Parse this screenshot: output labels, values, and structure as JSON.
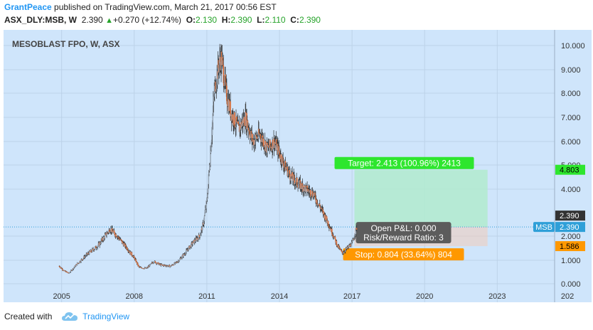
{
  "header": {
    "author": "GrantPeace",
    "published_text": "published on TradingView.com, March 21, 2017 00:56 EST",
    "symbol": "ASX_DLY:MSB, W",
    "last": "2.390",
    "change": "+0.270 (+12.74%)",
    "o_label": "O:",
    "o_value": "2.130",
    "h_label": "H:",
    "h_value": "2.390",
    "l_label": "L:",
    "l_value": "2.110",
    "c_label": "C:",
    "c_value": "2.390"
  },
  "footer": {
    "created_with": "Created with",
    "brand": "TradingView"
  },
  "colors": {
    "background": "#cfe5fb",
    "up_candle": "#9aa8b7",
    "down_candle": "#e0703a",
    "wick": "#333333",
    "target_fill": "#b3ead0",
    "target_badge": "#2ee62e",
    "stop_badge": "#ff9800",
    "price_line": "#2e9fd8",
    "msb_badge": "#2e9fd8"
  },
  "chart_data": {
    "type": "candlestick",
    "title": "MESOBLAST FPO, W, ASX",
    "scale": "log",
    "x_ticks": [
      "2005",
      "2008",
      "2011",
      "2014",
      "2017",
      "2020",
      "2023",
      "202"
    ],
    "y_ticks": [
      "10.000",
      "9.000",
      "8.000",
      "7.000",
      "6.000",
      "5.000",
      "4.000",
      "2.000",
      "1.000",
      "0.000"
    ],
    "x_range": [
      2002.6,
      2025.4
    ],
    "y_range": [
      0.0,
      10.0
    ],
    "price_path": [
      [
        2004.9,
        0.75
      ],
      [
        2005.1,
        0.55
      ],
      [
        2005.3,
        0.45
      ],
      [
        2005.6,
        0.8
      ],
      [
        2006.0,
        1.2
      ],
      [
        2006.5,
        1.6
      ],
      [
        2007.0,
        2.3
      ],
      [
        2007.3,
        2.0
      ],
      [
        2007.7,
        1.5
      ],
      [
        2008.0,
        1.1
      ],
      [
        2008.2,
        0.7
      ],
      [
        2008.5,
        0.65
      ],
      [
        2008.8,
        0.95
      ],
      [
        2009.1,
        0.8
      ],
      [
        2009.5,
        0.75
      ],
      [
        2009.8,
        0.95
      ],
      [
        2010.1,
        1.3
      ],
      [
        2010.4,
        1.7
      ],
      [
        2010.7,
        2.0
      ],
      [
        2010.85,
        2.5
      ],
      [
        2011.0,
        3.5
      ],
      [
        2011.15,
        5.5
      ],
      [
        2011.3,
        8.0
      ],
      [
        2011.45,
        9.0
      ],
      [
        2011.6,
        9.5
      ],
      [
        2011.8,
        8.0
      ],
      [
        2012.0,
        7.2
      ],
      [
        2012.3,
        6.5
      ],
      [
        2012.6,
        7.0
      ],
      [
        2012.9,
        6.0
      ],
      [
        2013.2,
        6.3
      ],
      [
        2013.5,
        5.7
      ],
      [
        2013.8,
        6.0
      ],
      [
        2014.0,
        5.5
      ],
      [
        2014.2,
        5.0
      ],
      [
        2014.5,
        4.5
      ],
      [
        2014.8,
        4.2
      ],
      [
        2015.1,
        4.0
      ],
      [
        2015.4,
        3.8
      ],
      [
        2015.7,
        3.2
      ],
      [
        2016.0,
        2.6
      ],
      [
        2016.2,
        2.1
      ],
      [
        2016.4,
        1.6
      ],
      [
        2016.6,
        1.3
      ],
      [
        2016.8,
        1.5
      ],
      [
        2017.0,
        1.7
      ],
      [
        2017.2,
        2.39
      ]
    ],
    "last_price": "2.390",
    "last_price_label": "MSB",
    "target_level": "4.803",
    "stop_level": "1.586",
    "position": {
      "target_text": "Target: 2.413 (100.96%) 2413",
      "stop_text": "Stop: 0.804 (33.64%) 804",
      "pnl_text": "Open P&L: 0.000",
      "rr_text": "Risk/Reward Ratio: 3",
      "entry": 2.39,
      "target": 4.803,
      "stop": 1.586,
      "start_x": 2017.1,
      "end_x": 2022.6
    }
  }
}
